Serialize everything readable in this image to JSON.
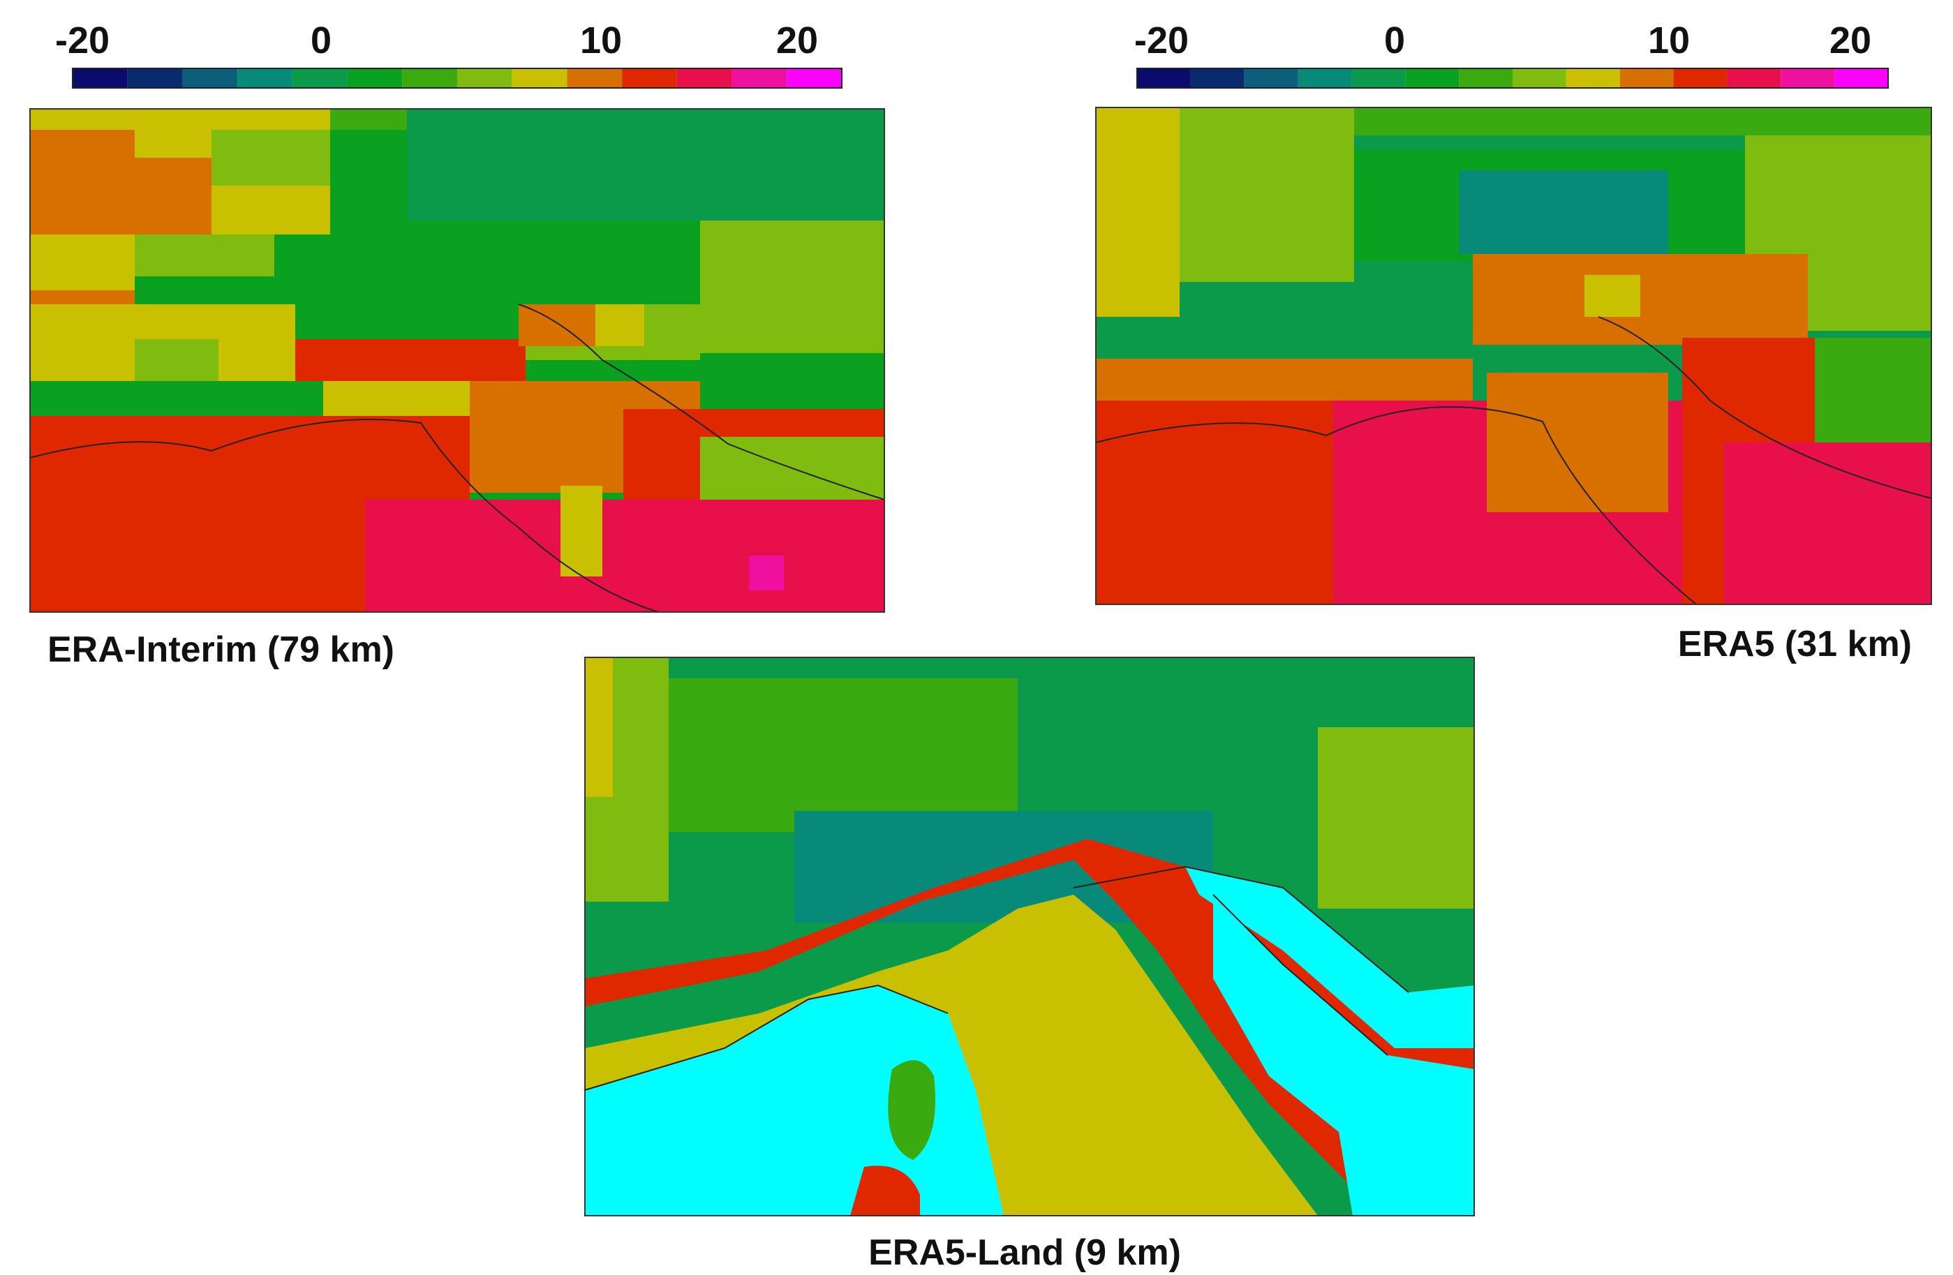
{
  "colorscale": [
    "#0b0b6b",
    "#0a2a6e",
    "#0b5f7a",
    "#088a78",
    "#0a9a4a",
    "#0aa020",
    "#3aaa10",
    "#80bb10",
    "#c8c000",
    "#d87000",
    "#e02800",
    "#e8104a",
    "#f010a0",
    "#ff00ff"
  ],
  "colorbars": [
    {
      "ticks": [
        "-20",
        "0",
        "10",
        "20"
      ]
    },
    {
      "ticks": [
        "-20",
        "0",
        "10",
        "20"
      ]
    }
  ],
  "panels": [
    {
      "caption": "ERA-Interim (79 km)"
    },
    {
      "caption": "ERA5 (31 km)"
    },
    {
      "caption": "ERA5-Land (9 km)"
    }
  ]
}
